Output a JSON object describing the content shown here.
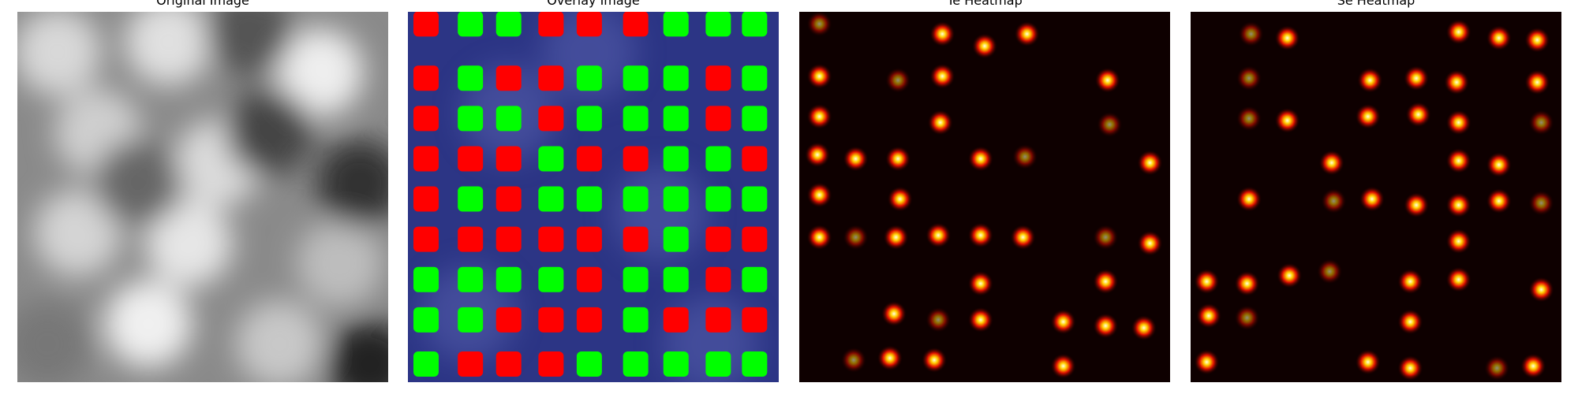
{
  "panels": [
    {
      "title": "Original Image"
    },
    {
      "title": "Overlay Image"
    },
    {
      "title": "Te Heatmap"
    },
    {
      "title": "Se Heatmap"
    }
  ]
}
